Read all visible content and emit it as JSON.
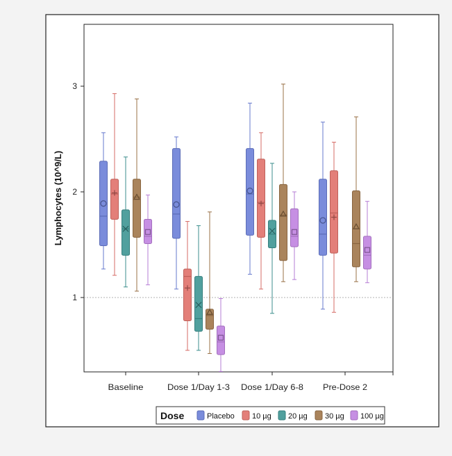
{
  "chart_data": {
    "type": "box",
    "title": "",
    "xlabel": "",
    "ylabel": "Lymphocytes (10^9/L)",
    "ylim": [
      0.3,
      3.6
    ],
    "yticks": [
      1,
      2,
      3
    ],
    "ytick_labels": [
      "1",
      "2",
      "3"
    ],
    "reference_line": 1,
    "grid": false,
    "legend_position": "bottom-right",
    "legend_title": "Dose",
    "categories": [
      "Baseline",
      "Dose 1/Day 1-3",
      "Dose 1/Day 6-8",
      "Pre-Dose 2"
    ],
    "series": [
      {
        "name": "Placebo",
        "color": "#6b7fd7",
        "marker": "circle",
        "boxes": [
          {
            "min": 1.27,
            "q1": 1.49,
            "median": 1.77,
            "q3": 2.29,
            "max": 2.56,
            "mean": 1.89
          },
          {
            "min": 1.08,
            "q1": 1.56,
            "median": 1.79,
            "q3": 2.41,
            "max": 2.52,
            "mean": 1.88
          },
          {
            "min": 1.22,
            "q1": 1.59,
            "median": 1.98,
            "q3": 2.41,
            "max": 2.84,
            "mean": 2.01
          },
          {
            "min": 0.89,
            "q1": 1.4,
            "median": 1.6,
            "q3": 2.12,
            "max": 2.66,
            "mean": 1.73
          }
        ]
      },
      {
        "name": "10 µg",
        "color": "#e0716a",
        "marker": "plus",
        "boxes": [
          {
            "min": 1.21,
            "q1": 1.74,
            "median": 1.98,
            "q3": 2.12,
            "max": 2.93,
            "mean": 1.99
          },
          {
            "min": 0.5,
            "q1": 0.78,
            "median": 1.2,
            "q3": 1.27,
            "max": 1.72,
            "mean": 1.09
          },
          {
            "min": 1.08,
            "q1": 1.57,
            "median": 1.9,
            "q3": 2.31,
            "max": 2.56,
            "mean": 1.89
          },
          {
            "min": 0.86,
            "q1": 1.42,
            "median": 1.8,
            "q3": 2.2,
            "max": 2.47,
            "mean": 1.76
          }
        ]
      },
      {
        "name": "20 µg",
        "color": "#3e9593",
        "marker": "x",
        "boxes": [
          {
            "min": 1.1,
            "q1": 1.4,
            "median": 1.65,
            "q3": 1.83,
            "max": 2.33,
            "mean": 1.65
          },
          {
            "min": 0.5,
            "q1": 0.68,
            "median": 0.8,
            "q3": 1.2,
            "max": 1.68,
            "mean": 0.93
          },
          {
            "min": 0.85,
            "q1": 1.47,
            "median": 1.6,
            "q3": 1.73,
            "max": 2.27,
            "mean": 1.63
          },
          null
        ]
      },
      {
        "name": "30 µg",
        "color": "#a0764a",
        "marker": "triangle",
        "boxes": [
          {
            "min": 1.06,
            "q1": 1.57,
            "median": 1.95,
            "q3": 2.12,
            "max": 2.88,
            "mean": 1.95
          },
          {
            "min": 0.47,
            "q1": 0.7,
            "median": 0.83,
            "q3": 0.89,
            "max": 1.81,
            "mean": 0.86
          },
          {
            "min": 1.15,
            "q1": 1.35,
            "median": 1.78,
            "q3": 2.07,
            "max": 3.02,
            "mean": 1.79
          },
          {
            "min": 1.15,
            "q1": 1.29,
            "median": 1.51,
            "q3": 2.01,
            "max": 2.71,
            "mean": 1.67
          }
        ]
      },
      {
        "name": "100 µg",
        "color": "#c083e0",
        "marker": "square",
        "boxes": [
          {
            "min": 1.12,
            "q1": 1.51,
            "median": 1.58,
            "q3": 1.74,
            "max": 1.97,
            "mean": 1.62
          },
          {
            "min": 0.3,
            "q1": 0.46,
            "median": 0.58,
            "q3": 0.73,
            "max": 0.99,
            "mean": 0.62
          },
          {
            "min": 1.17,
            "q1": 1.48,
            "median": 1.58,
            "q3": 1.84,
            "max": 2.0,
            "mean": 1.62
          },
          {
            "min": 1.14,
            "q1": 1.27,
            "median": 1.4,
            "q3": 1.58,
            "max": 1.91,
            "mean": 1.45
          }
        ]
      }
    ]
  }
}
